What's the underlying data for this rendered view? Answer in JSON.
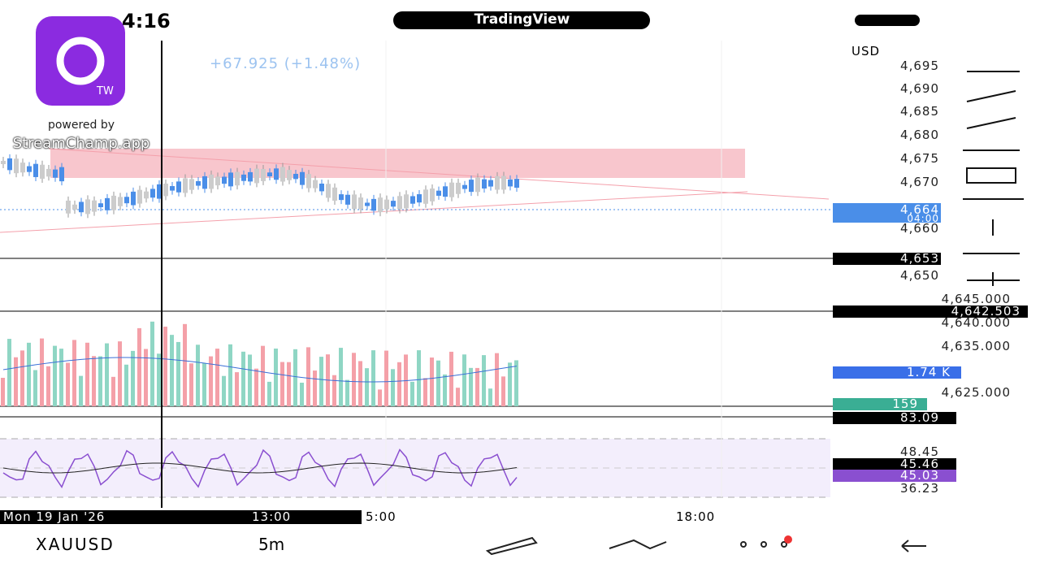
{
  "status_bar": {
    "time": "4:16"
  },
  "header": {
    "brand": "TradingView"
  },
  "overlay": {
    "badge": "TW",
    "powered_by": "powered by",
    "site": "StreamChamp.app"
  },
  "quote": {
    "change": "+67.925 (+1.48%)"
  },
  "price_axis": {
    "currency": "USD",
    "labels": [
      "4,695",
      "4,690",
      "4,685",
      "4,680",
      "4,675",
      "4,670",
      "4,660",
      "4,650",
      "4,645.000",
      "4,640.000",
      "4,635.000",
      "4,625.000",
      "48.45",
      "36.23"
    ]
  },
  "markers": {
    "last_price": "4,664",
    "countdown": "04:00",
    "level_1": "4,653",
    "level_2": "4,642.503",
    "volume": "1.74 K",
    "volume_ma": "159",
    "rsi_top": "83.09",
    "rsi": "45.46",
    "rsi_ma": "45.03"
  },
  "time_axis": {
    "date": "Mon 19 Jan '26",
    "cursor_time": "13:00",
    "labels": [
      "5:00",
      "18:00"
    ]
  },
  "footer": {
    "symbol": "XAUUSD",
    "interval": "5m"
  }
}
